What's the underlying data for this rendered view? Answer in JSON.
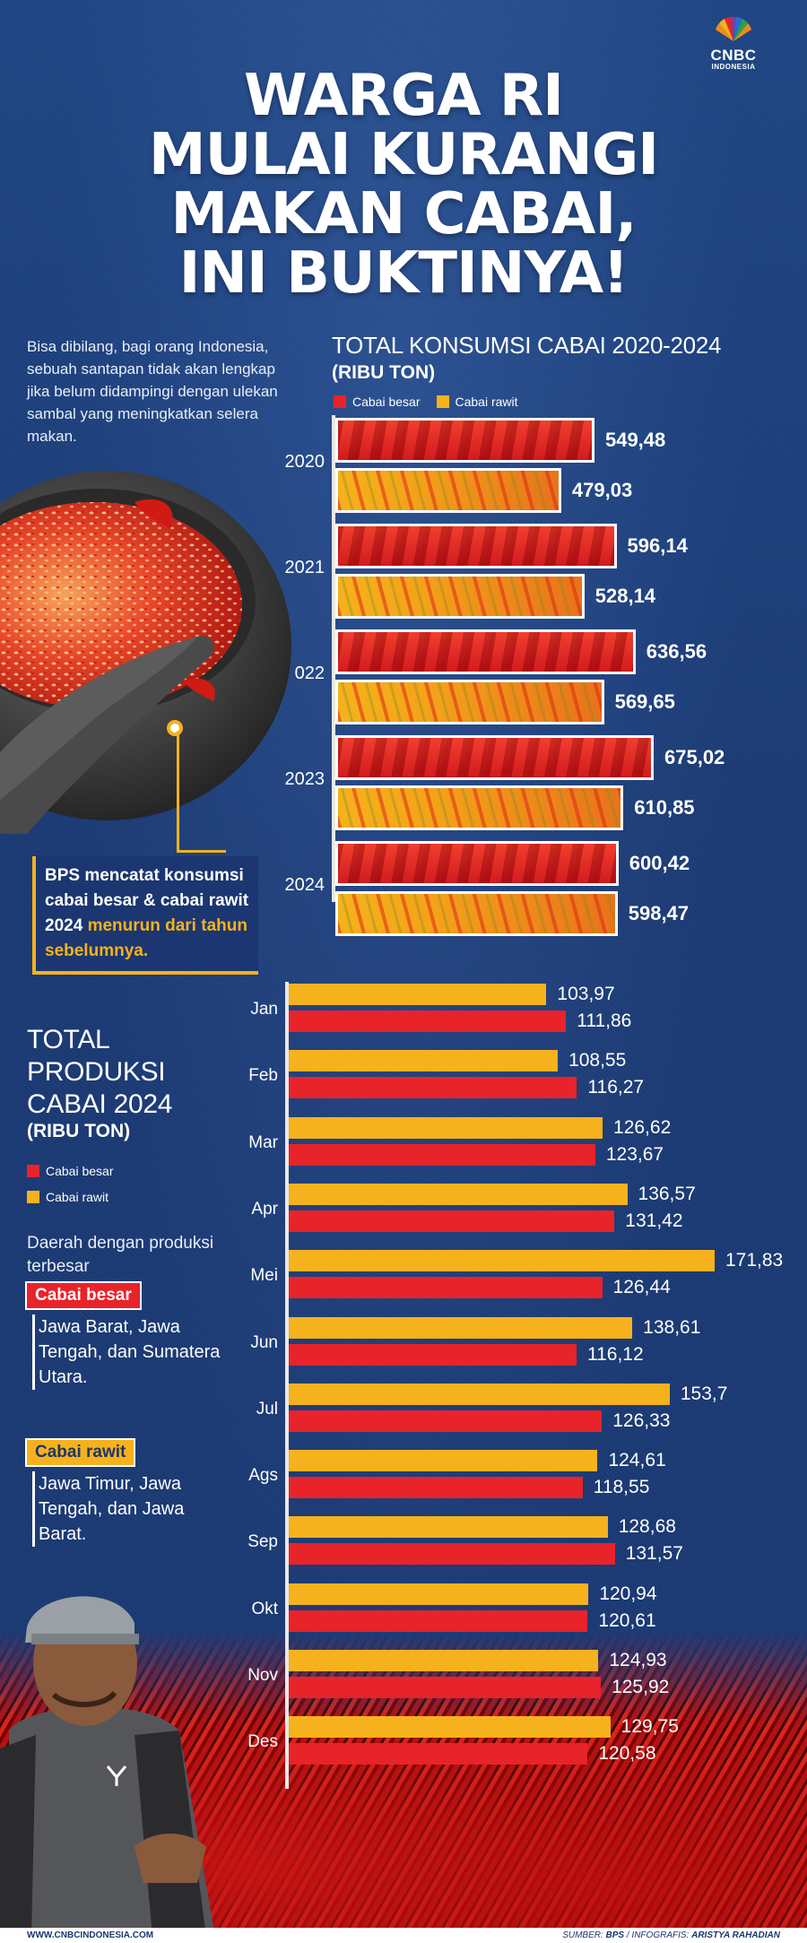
{
  "brand": {
    "name": "CNBC",
    "sub": "INDONESIA"
  },
  "title_lines": [
    "WARGA RI",
    "MULAI KURANGI",
    "MAKAN CABAI,",
    "INI BUKTINYA!"
  ],
  "intro": "Bisa dibilang, bagi orang Indonesia, sebuah santapan tidak akan lengkap jika belum didampingi dengan ulekan sambal yang meningkatkan selera makan.",
  "callout": {
    "text": "BPS mencatat konsumsi cabai besar & cabai rawit 2024",
    "highlight": "menurun dari tahun sebelumnya."
  },
  "legend": {
    "besar": "Cabai besar",
    "rawit": "Cabai rawit"
  },
  "colors": {
    "besar": "#e8232a",
    "rawit": "#f6b21c",
    "background": "#1b3a74"
  },
  "production_side": {
    "region_intro": "Daerah dengan produksi terbesar",
    "besar_regions": "Jawa Barat, Jawa Tengah, dan Sumatera Utara.",
    "rawit_regions": "Jawa Timur, Jawa Tengah, dan Jawa Barat."
  },
  "footer": {
    "website": "WWW.CNBCINDONESIA.COM",
    "source_label": "SUMBER:",
    "source": "BPS",
    "infografis_label": "/ INFOGRAFIS:",
    "author": "ARISTYA RAHADIAN"
  },
  "chart_data": [
    {
      "type": "bar",
      "orientation": "horizontal",
      "title": "TOTAL KONSUMSI CABAI 2020-2024",
      "unit": "(RIBU TON)",
      "categories": [
        "2020",
        "2021",
        "022",
        "2023",
        "2024"
      ],
      "series": [
        {
          "name": "Cabai besar",
          "values": [
            549.48,
            596.14,
            636.56,
            675.02,
            600.42
          ],
          "labels": [
            "549,48",
            "596,14",
            "636,56",
            "675,02",
            "600,42"
          ]
        },
        {
          "name": "Cabai rawit",
          "values": [
            479.03,
            528.14,
            569.65,
            610.85,
            598.47
          ],
          "labels": [
            "479,03",
            "528,14",
            "569,65",
            "610,85",
            "598,47"
          ]
        }
      ]
    },
    {
      "type": "bar",
      "orientation": "horizontal",
      "title_lines": [
        "TOTAL",
        "PRODUKSI",
        "CABAI 2024"
      ],
      "unit": "(RIBU TON)",
      "categories": [
        "Jan",
        "Feb",
        "Mar",
        "Apr",
        "Mei",
        "Jun",
        "Jul",
        "Ags",
        "Sep",
        "Okt",
        "Nov",
        "Des"
      ],
      "series": [
        {
          "name": "Cabai rawit",
          "values": [
            103.97,
            108.55,
            126.62,
            136.57,
            171.83,
            138.61,
            153.7,
            124.61,
            128.68,
            120.94,
            124.93,
            129.75
          ],
          "labels": [
            "103,97",
            "108,55",
            "126,62",
            "136,57",
            "171,83",
            "138,61",
            "153,7",
            "124,61",
            "128,68",
            "120,94",
            "124,93",
            "129,75"
          ]
        },
        {
          "name": "Cabai besar",
          "values": [
            111.86,
            116.27,
            123.67,
            131.42,
            126.44,
            116.12,
            126.33,
            118.55,
            131.57,
            120.61,
            125.92,
            120.58
          ],
          "labels": [
            "111,86",
            "116,27",
            "123,67",
            "131,42",
            "126,44",
            "116,12",
            "126,33",
            "118,55",
            "131,57",
            "120,61",
            "125,92",
            "120,58"
          ]
        }
      ]
    }
  ]
}
